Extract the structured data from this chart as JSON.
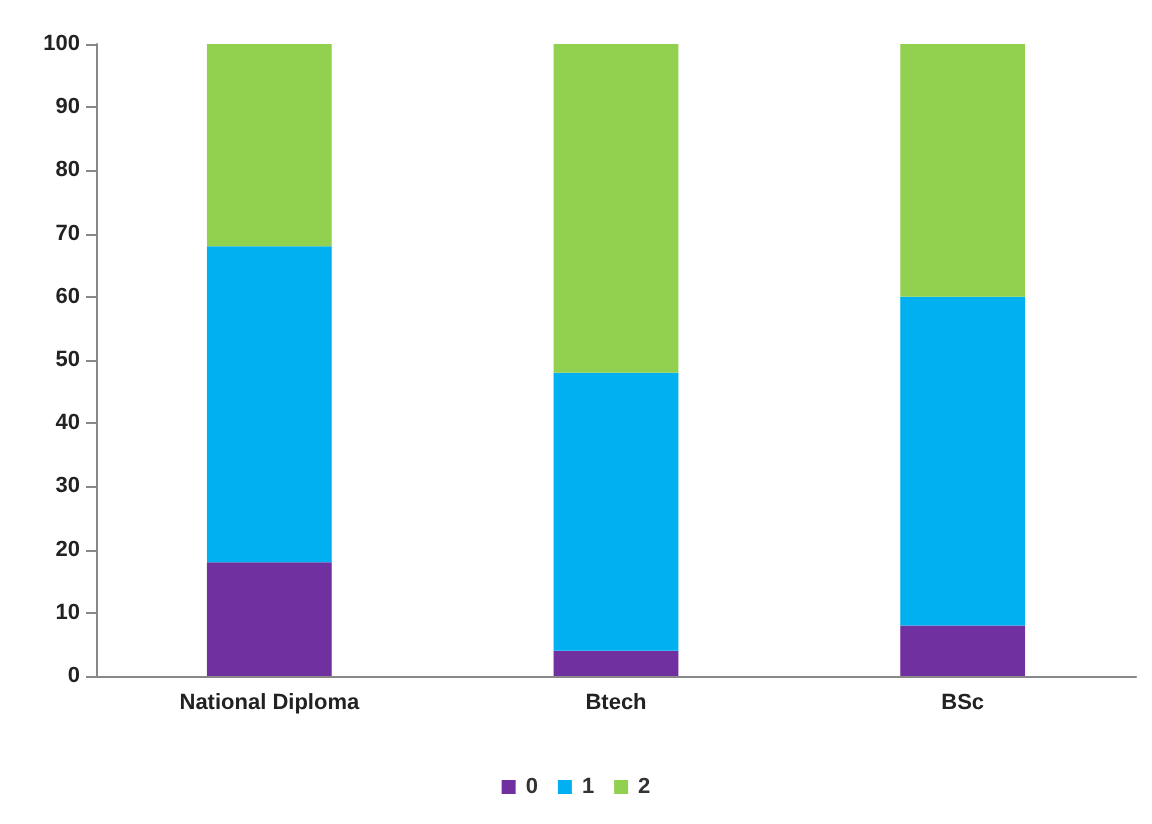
{
  "chart_data": {
    "type": "bar",
    "stacked": true,
    "categories": [
      "National Diploma",
      "Btech",
      "BSc"
    ],
    "series": [
      {
        "name": "0",
        "color": "#7030a0",
        "values": [
          18,
          4,
          8
        ]
      },
      {
        "name": "1",
        "color": "#00b0f0",
        "values": [
          50,
          44,
          52
        ]
      },
      {
        "name": "2",
        "color": "#92d050",
        "values": [
          32,
          52,
          40
        ]
      }
    ],
    "ylim": [
      0,
      100
    ],
    "yticks": [
      0,
      10,
      20,
      30,
      40,
      50,
      60,
      70,
      80,
      90,
      100
    ],
    "grid": false,
    "legend": "bottom"
  }
}
